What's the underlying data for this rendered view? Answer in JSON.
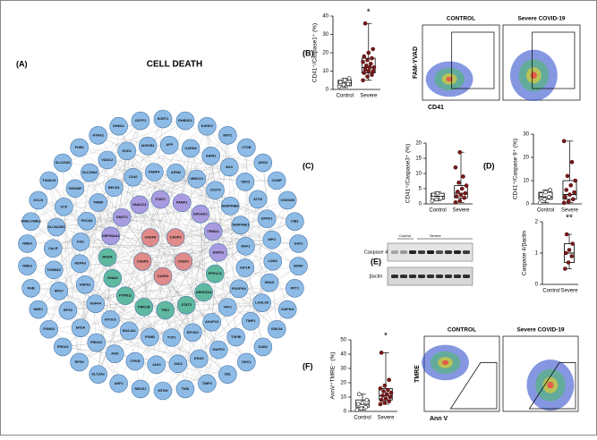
{
  "network": {
    "label": "(A)",
    "title": "CELL DEATH",
    "groups": [
      {
        "color": "#8dbbe6",
        "nodes": [
          "SORT1",
          "RHBDD1",
          "KANK2",
          "NNT1",
          "CTSB",
          "ARG2",
          "COMP",
          "CSKN2B",
          "CIB1",
          "SAV1",
          "BDNF",
          "PPT1",
          "CIAPIN1",
          "GSK3A",
          "DAB2",
          "DKK1",
          "CBL",
          "TIMP2",
          "TNIK",
          "MTDH",
          "RBCK1",
          "ARF4",
          "SLC3A2",
          "RPS6",
          "PRDX3",
          "PSMD2",
          "NME1",
          "PHB",
          "NME3",
          "NME4",
          "NME1-NME2",
          "OCLN",
          "TXNDC5",
          "SLC25A5",
          "PHB2",
          "HTRA2",
          "DNM1L",
          "GSTP1"
        ]
      },
      {
        "color": "#8dbbe6",
        "nodes": [
          "APP",
          "CARD8",
          "AIFM1",
          "BAX",
          "YBX3",
          "ATG3",
          "EPHX1",
          "MPO",
          "LDHA",
          "HRAS",
          "LGALS9",
          "TIMP1",
          "TGFBI",
          "MAPK3",
          "KRAS",
          "JAK2",
          "JAK3",
          "ITPKB",
          "ANG",
          "PRKDC",
          "ENSA",
          "RPS3",
          "RPS7",
          "TOMM22",
          "CALR",
          "SLC9A3R1",
          "VCP",
          "TARDBP",
          "SLC25A6",
          "VDAC2",
          "SOD1",
          "AKR1B1"
        ]
      },
      {
        "color": "#8dbbe6",
        "nodes": [
          "AIFM2",
          "UBE2V1",
          "CD274",
          "SERPINB6",
          "SERPINE1",
          "RAF1",
          "IGF1R",
          "PDGFRA",
          "VAV1",
          "AKAP13",
          "EIF4G2",
          "TCP1",
          "PSMB",
          "DNAJA1",
          "HYOU1",
          "HSPA4",
          "HSPH1",
          "HSPA8",
          "FIS1",
          "PDCD6",
          "TRIM5",
          "BECN1",
          "CD40",
          "FABP4"
        ]
      },
      {
        "color": "#a99be0",
        "nodes": [
          "HSP90AA1",
          "GNGT1",
          "DNAJC3",
          "STAT1",
          "PARP1",
          "EIF2AK2",
          "TRIM21",
          "HSPD1"
        ]
      },
      {
        "color": "#5fb8a0",
        "nodes": [
          "PPP1CA",
          "ARHGDIA",
          "STAT3",
          "TRIO",
          "PRKCB",
          "PTPN11",
          "GNAI3",
          "RHOA"
        ]
      },
      {
        "color": "#e08a8a",
        "nodes": [
          "CASP1",
          "CASP4",
          "CASP3",
          "CASP8",
          "CASP9"
        ]
      }
    ]
  },
  "panel_b": {
    "label": "(B)",
    "ylabel": "CD41⁺/Caspase1⁺ (%)",
    "ylim": [
      0,
      40
    ],
    "yticks": [
      0,
      10,
      20,
      30,
      40
    ],
    "star": "*",
    "groups": [
      {
        "name": "Control",
        "min": 1,
        "q1": 2,
        "median": 3.5,
        "q3": 5,
        "max": 6,
        "points": [
          1.5,
          2.5,
          3,
          4,
          5,
          6
        ]
      },
      {
        "name": "Severe",
        "min": 5,
        "q1": 9,
        "median": 12,
        "q3": 17,
        "max": 36,
        "points": [
          5,
          7,
          8,
          9,
          10,
          10,
          11,
          12,
          12,
          13,
          14,
          15,
          16,
          17,
          18,
          20,
          22,
          36
        ]
      }
    ],
    "flow": {
      "titles": [
        "CONTROL",
        "Severe COVID-19"
      ],
      "ylabel": "FAM-YVAD",
      "xlabel": "CD41"
    }
  },
  "panel_c": {
    "label": "(C)",
    "ylabel": "CD41⁺/Caspase3⁺ (%)",
    "ylim": [
      0,
      20
    ],
    "yticks": [
      0,
      5,
      10,
      15,
      20
    ],
    "groups": [
      {
        "name": "Control",
        "min": 1,
        "q1": 1.5,
        "median": 2.5,
        "q3": 3.5,
        "max": 4,
        "points": [
          1,
          1.5,
          2,
          3,
          3.5
        ]
      },
      {
        "name": "Severe",
        "min": 0.5,
        "q1": 2,
        "median": 3.5,
        "q3": 6,
        "max": 17,
        "points": [
          0.5,
          1,
          2,
          2.5,
          3,
          3.5,
          4,
          5,
          6,
          7,
          9,
          12,
          17
        ]
      }
    ]
  },
  "panel_d": {
    "label": "(D)",
    "ylabel": "CD41⁺/Caspase 9⁺ (%)",
    "ylim": [
      0,
      30
    ],
    "yticks": [
      0,
      10,
      20,
      30
    ],
    "groups": [
      {
        "name": "Control",
        "min": 0.5,
        "q1": 2,
        "median": 3,
        "q3": 5,
        "max": 6,
        "points": [
          0.5,
          2,
          3,
          4,
          5,
          6
        ]
      },
      {
        "name": "Severe",
        "min": 0.5,
        "q1": 2,
        "median": 4,
        "q3": 10,
        "max": 27,
        "points": [
          0.5,
          1,
          2,
          3,
          4,
          5,
          6,
          8,
          10,
          12,
          18,
          27
        ]
      }
    ]
  },
  "panel_e": {
    "label": "(E)",
    "blot_rows": [
      "Caspase 4",
      "βactin"
    ],
    "blot_groups": [
      "Control",
      "Severe"
    ],
    "ylabel": "Caspase 4/βactin",
    "ylim": [
      0,
      2
    ],
    "yticks": [
      0,
      1,
      2
    ],
    "star": "**",
    "groups": [
      {
        "name": "Control",
        "points": []
      },
      {
        "name": "Severe",
        "min": 0.5,
        "q1": 0.7,
        "median": 1.0,
        "q3": 1.3,
        "max": 1.6,
        "points": [
          0.5,
          0.7,
          0.9,
          1,
          1.1,
          1.3,
          1.6
        ]
      }
    ]
  },
  "panel_f": {
    "label": "(F)",
    "ylabel": "AnnV⁺TMRE⁻ (%)",
    "ylim": [
      0,
      50
    ],
    "yticks": [
      0,
      10,
      20,
      30,
      40,
      50
    ],
    "star": "*",
    "groups": [
      {
        "name": "Control",
        "min": 1,
        "q1": 3,
        "median": 5,
        "q3": 8,
        "max": 12,
        "points": [
          1,
          2,
          3,
          5,
          6,
          8,
          12
        ]
      },
      {
        "name": "Severe",
        "min": 5,
        "q1": 8,
        "median": 11,
        "q3": 16,
        "max": 41,
        "points": [
          5,
          6,
          7,
          8,
          9,
          10,
          11,
          12,
          13,
          14,
          15,
          16,
          18,
          22,
          41
        ]
      }
    ],
    "flow": {
      "titles": [
        "CONTROL",
        "Severe COVID-19"
      ],
      "ylabel": "TMRE",
      "xlabel": "Ann V"
    }
  }
}
